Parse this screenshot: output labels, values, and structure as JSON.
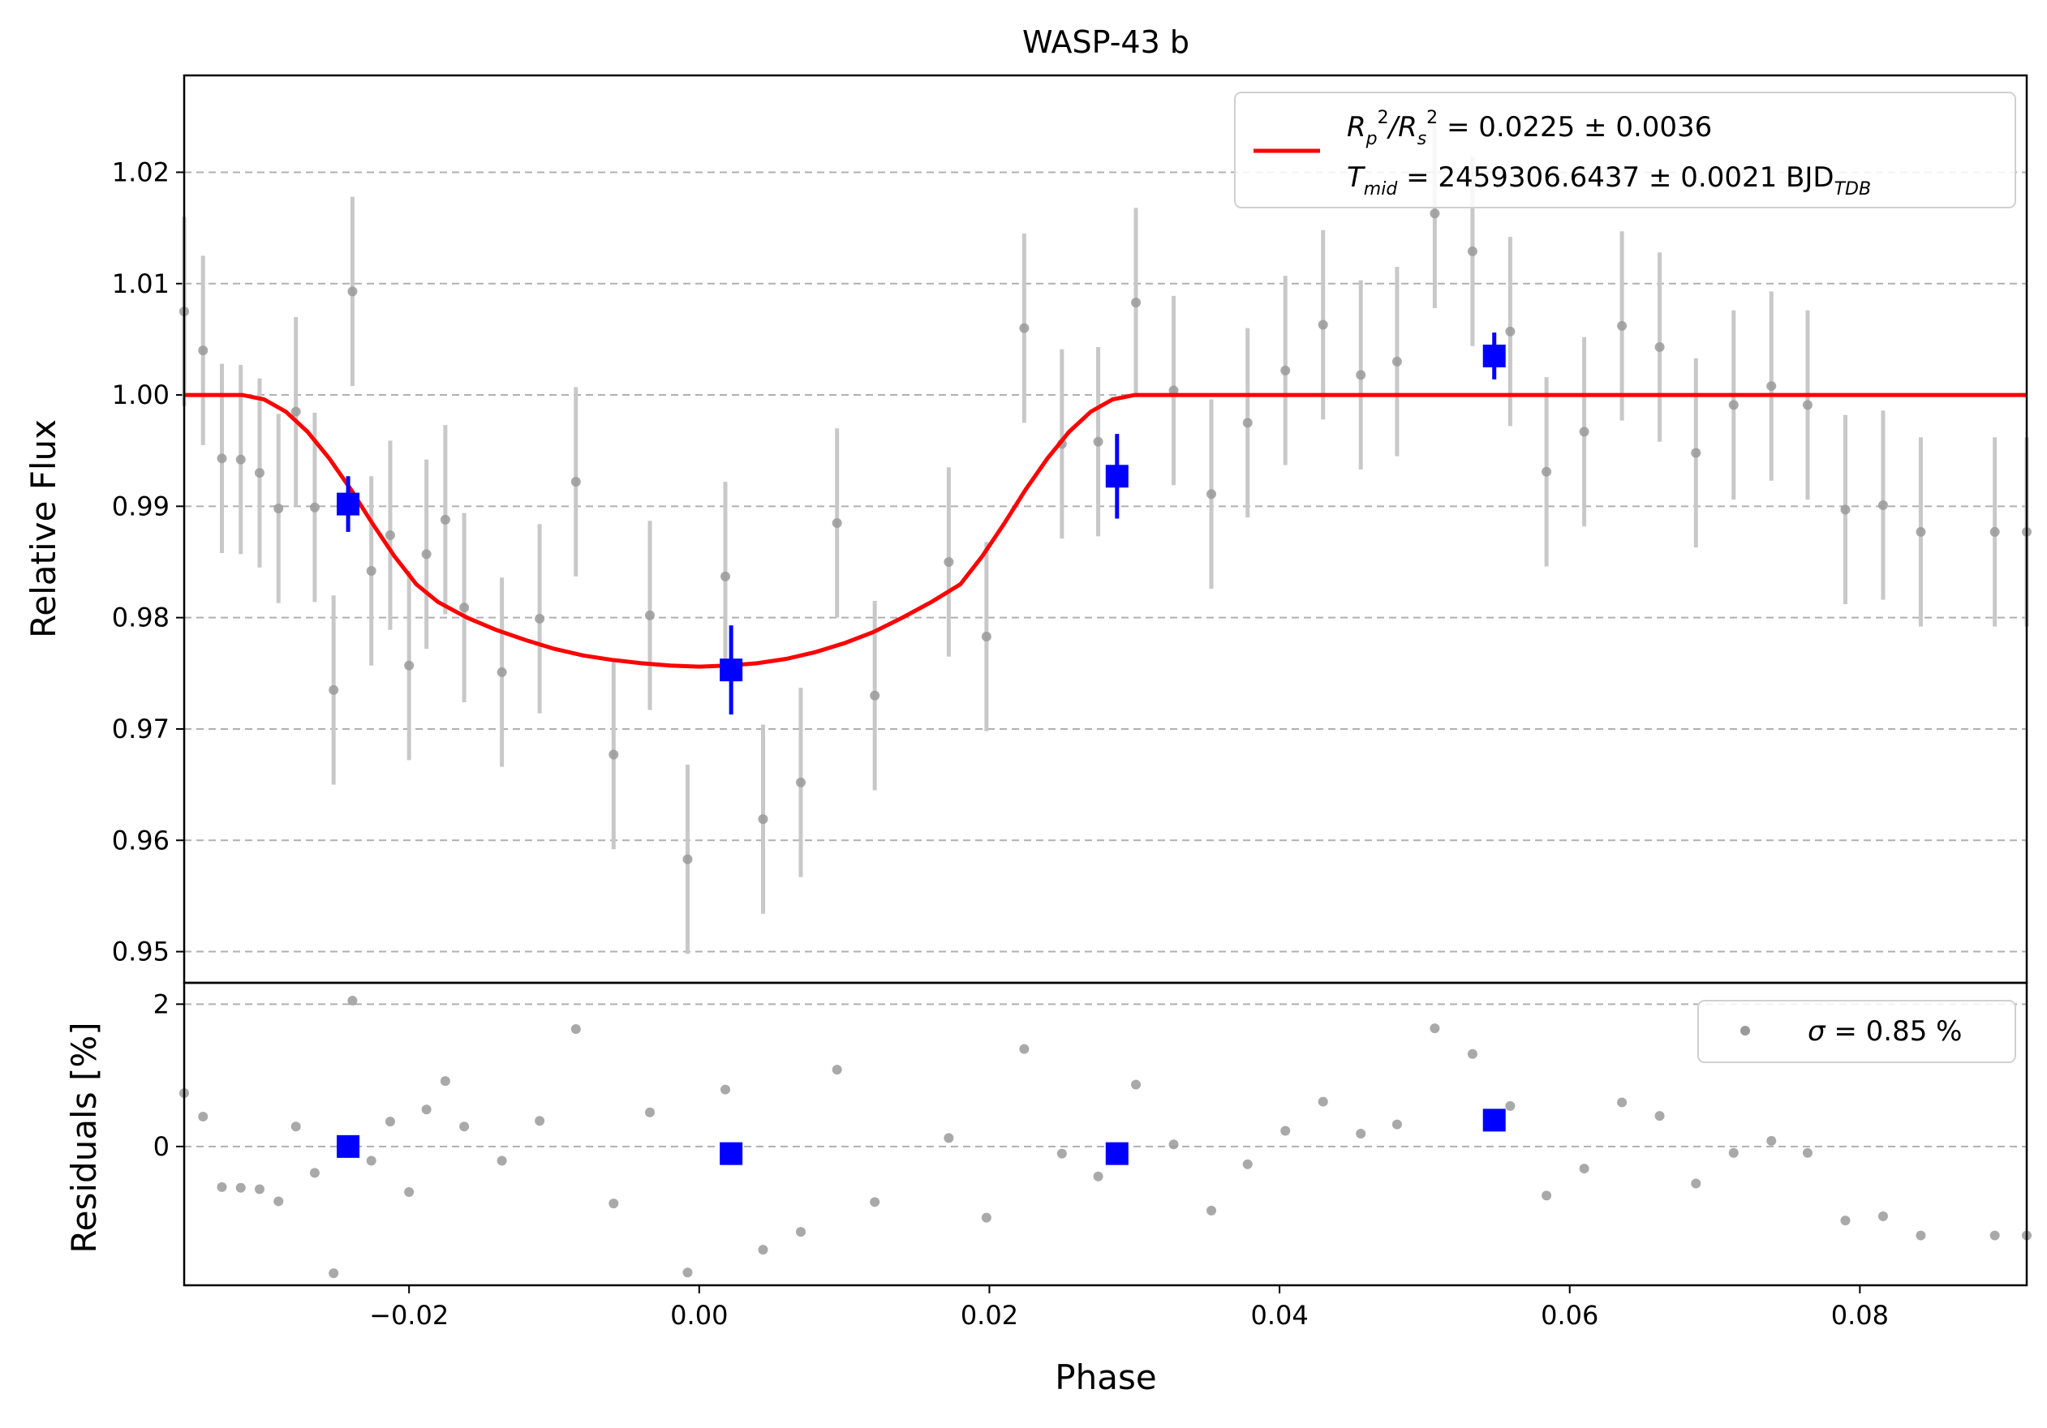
{
  "title": "WASP-43 b",
  "colors": {
    "model": "#ff0000",
    "binned": "#0000ff",
    "data": "#9a9a9a",
    "errorbar": "#c8c8c8",
    "grid": "#b0b0b0"
  },
  "chart_data": [
    {
      "type": "scatter",
      "panel": "light-curve",
      "title": "WASP-43 b",
      "xlabel": "Phase",
      "ylabel": "Relative Flux",
      "xlim": [
        -0.0355,
        0.0915
      ],
      "ylim": [
        0.9472,
        1.0287
      ],
      "grid": "horizontal dashed",
      "legend_position": "top-right",
      "yticks": [
        0.95,
        0.96,
        0.97,
        0.98,
        0.99,
        1.0,
        1.01,
        1.02
      ],
      "ytick_labels": [
        "0.95",
        "0.96",
        "0.97",
        "0.98",
        "0.99",
        "1.00",
        "1.01",
        "1.02"
      ],
      "legend": {
        "line1_prefix_a": "R",
        "line1_sub_a": "p",
        "line1_sup_a": "2",
        "line1_slash": "/",
        "line1_prefix_b": "R",
        "line1_sub_b": "s",
        "line1_sup_b": "2",
        "line1_value": " = 0.0225 ± 0.0036",
        "line2_prefix": "T",
        "line2_sub": "mid",
        "line2_value": " = 2459306.6437 ± 0.0021 BJD",
        "line2_sub_units": "TDB"
      },
      "series": [
        {
          "kind": "data",
          "x": [
            -0.0355,
            -0.0342,
            -0.0329,
            -0.0316,
            -0.0303,
            -0.029,
            -0.0278,
            -0.0265,
            -0.0252,
            -0.0239,
            -0.0226,
            -0.0213,
            -0.02,
            -0.0188,
            -0.0175,
            -0.0162,
            -0.0136,
            -0.011,
            -0.0085,
            -0.0059,
            -0.0034,
            -0.0008,
            0.0018,
            0.0044,
            0.007,
            0.0095,
            0.0121,
            0.0172,
            0.0198,
            0.0224,
            0.025,
            0.0275,
            0.0301,
            0.0327,
            0.0353,
            0.0378,
            0.0404,
            0.043,
            0.0456,
            0.0481,
            0.0507,
            0.0533,
            0.0559,
            0.0584,
            0.061,
            0.0636,
            0.0662,
            0.0687,
            0.0713,
            0.0739,
            0.0764,
            0.079,
            0.0816,
            0.0842,
            0.0893,
            0.0915
          ],
          "y": [
            1.0075,
            1.004,
            0.9943,
            0.9942,
            0.993,
            0.9898,
            0.9985,
            0.9899,
            0.9735,
            1.0093,
            0.9842,
            0.9874,
            0.9757,
            0.9857,
            0.9888,
            0.9809,
            0.9751,
            0.9799,
            0.9922,
            0.9677,
            0.9802,
            0.9583,
            0.9837,
            0.9619,
            0.9652,
            0.9885,
            0.973,
            0.985,
            0.9783,
            1.006,
            0.9956,
            0.9958,
            1.0083,
            1.0004,
            0.9911,
            0.9975,
            1.0022,
            1.0063,
            1.0018,
            1.003,
            1.0163,
            1.0129,
            1.0057,
            0.9931,
            0.9967,
            1.0062,
            1.0043,
            0.9948,
            0.9991,
            1.0008,
            0.9991,
            0.9897,
            0.9901,
            0.9877,
            0.9877,
            0.9877
          ],
          "yerr": 0.0085
        },
        {
          "kind": "binned",
          "x": [
            -0.0242,
            0.0022,
            0.0288,
            0.0548
          ],
          "y": [
            0.9902,
            0.9753,
            0.9927,
            1.0035
          ],
          "yerr": [
            0.0025,
            0.004,
            0.0038,
            0.0021
          ]
        },
        {
          "kind": "model",
          "x": [
            -0.0355,
            -0.0315,
            -0.03,
            -0.0285,
            -0.027,
            -0.0255,
            -0.024,
            -0.0225,
            -0.021,
            -0.0195,
            -0.018,
            -0.016,
            -0.014,
            -0.012,
            -0.01,
            -0.008,
            -0.006,
            -0.004,
            -0.002,
            0.0,
            0.002,
            0.004,
            0.006,
            0.008,
            0.01,
            0.012,
            0.014,
            0.016,
            0.018,
            0.0195,
            0.021,
            0.0225,
            0.024,
            0.0255,
            0.027,
            0.0285,
            0.03,
            0.0315,
            0.033,
            0.0915
          ],
          "y": [
            1.0,
            1.0,
            0.9996,
            0.9985,
            0.9967,
            0.9943,
            0.9915,
            0.9884,
            0.9855,
            0.983,
            0.9814,
            0.98,
            0.9789,
            0.978,
            0.9772,
            0.9766,
            0.9762,
            0.9759,
            0.9757,
            0.9756,
            0.9757,
            0.9759,
            0.9763,
            0.9769,
            0.9777,
            0.9787,
            0.98,
            0.9814,
            0.983,
            0.9855,
            0.9884,
            0.9915,
            0.9943,
            0.9967,
            0.9985,
            0.9996,
            1.0,
            1.0,
            1.0,
            1.0
          ]
        }
      ]
    },
    {
      "type": "scatter",
      "panel": "residuals",
      "xlabel": "Phase",
      "ylabel": "Residuals [%]",
      "xlim": [
        -0.0355,
        0.0915
      ],
      "ylim": [
        -1.95,
        2.3
      ],
      "grid": "horizontal dashed",
      "legend_position": "top-right",
      "yticks": [
        0,
        2
      ],
      "ytick_labels": [
        "0",
        "2"
      ],
      "xticks": [
        -0.02,
        0.0,
        0.02,
        0.04,
        0.06,
        0.08
      ],
      "xtick_labels": [
        "−0.02",
        "0.00",
        "0.02",
        "0.04",
        "0.06",
        "0.08"
      ],
      "legend": {
        "symbol": "σ",
        "value": " = 0.85 %"
      },
      "series": [
        {
          "kind": "data",
          "x": [
            -0.0355,
            -0.0342,
            -0.0329,
            -0.0316,
            -0.0303,
            -0.029,
            -0.0278,
            -0.0265,
            -0.0252,
            -0.0239,
            -0.0226,
            -0.0213,
            -0.02,
            -0.0188,
            -0.0175,
            -0.0162,
            -0.0136,
            -0.011,
            -0.0085,
            -0.0059,
            -0.0034,
            -0.0008,
            0.0018,
            0.0044,
            0.007,
            0.0095,
            0.0121,
            0.0172,
            0.0198,
            0.0224,
            0.025,
            0.0275,
            0.0301,
            0.0327,
            0.0353,
            0.0378,
            0.0404,
            0.043,
            0.0456,
            0.0481,
            0.0507,
            0.0533,
            0.0559,
            0.0584,
            0.061,
            0.0636,
            0.0662,
            0.0687,
            0.0713,
            0.0739,
            0.0764,
            0.079,
            0.0816,
            0.0842,
            0.0893,
            0.0915
          ],
          "y": [
            0.75,
            0.42,
            -0.57,
            -0.58,
            -0.6,
            -0.77,
            0.28,
            -0.37,
            -1.78,
            2.05,
            -0.2,
            0.35,
            -0.64,
            0.52,
            0.92,
            0.28,
            -0.2,
            0.36,
            1.65,
            -0.8,
            0.48,
            -1.77,
            0.8,
            -1.45,
            -1.2,
            1.08,
            -0.78,
            0.12,
            -1.0,
            1.37,
            -0.1,
            -0.42,
            0.87,
            0.03,
            -0.9,
            -0.25,
            0.22,
            0.63,
            0.18,
            0.31,
            1.66,
            1.3,
            0.57,
            -0.69,
            -0.31,
            0.62,
            0.43,
            -0.52,
            -0.09,
            0.08,
            -0.09,
            -1.04,
            -0.98,
            -1.25,
            -1.25,
            -1.25
          ]
        },
        {
          "kind": "binned",
          "x": [
            -0.0242,
            0.0022,
            0.0288,
            0.0548
          ],
          "y": [
            0.0,
            -0.1,
            -0.1,
            0.37
          ]
        }
      ]
    }
  ]
}
